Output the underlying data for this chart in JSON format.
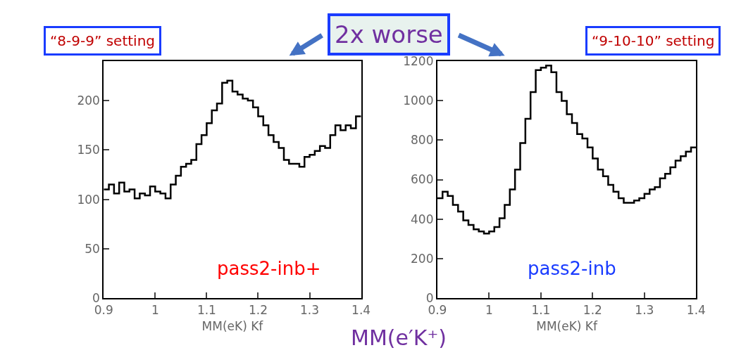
{
  "chart_data": [
    {
      "type": "histogram",
      "xlabel": "MM(eK) Kf",
      "color": "#000000",
      "bins": [
        0.9,
        0.91,
        0.92,
        0.93,
        0.94,
        0.95,
        0.96,
        0.97,
        0.98,
        0.99,
        1.0,
        1.01,
        1.02,
        1.03,
        1.04,
        1.05,
        1.06,
        1.07,
        1.08,
        1.09,
        1.1,
        1.11,
        1.12,
        1.13,
        1.14,
        1.15,
        1.16,
        1.17,
        1.18,
        1.19,
        1.2,
        1.21,
        1.22,
        1.23,
        1.24,
        1.25,
        1.26,
        1.27,
        1.28,
        1.29,
        1.3,
        1.31,
        1.32,
        1.33,
        1.34,
        1.35,
        1.36,
        1.37,
        1.38,
        1.39,
        1.4
      ],
      "values": [
        110,
        115,
        106,
        117,
        108,
        110,
        101,
        106,
        104,
        113,
        108,
        106,
        101,
        115,
        124,
        133,
        136,
        140,
        156,
        165,
        177,
        190,
        197,
        218,
        220,
        209,
        206,
        202,
        200,
        193,
        184,
        175,
        165,
        158,
        152,
        140,
        136,
        136,
        133,
        143,
        145,
        149,
        154,
        152,
        165,
        175,
        170,
        175,
        172,
        184
      ],
      "xlim": [
        0.9,
        1.4
      ],
      "xticks": [
        0.9,
        1,
        1.1,
        1.2,
        1.3,
        1.4
      ],
      "ylim": [
        0,
        240
      ],
      "yticks": [
        0,
        50,
        100,
        150,
        200
      ],
      "annotations": [
        "“8-9-9” setting",
        "pass2-inb+",
        "2x worse",
        "MM(e′K⁺)"
      ]
    },
    {
      "type": "histogram",
      "xlabel": "MM(eK) Kf",
      "color": "#000000",
      "bins": [
        0.9,
        0.91,
        0.92,
        0.93,
        0.94,
        0.95,
        0.96,
        0.97,
        0.98,
        0.99,
        1.0,
        1.01,
        1.02,
        1.03,
        1.04,
        1.05,
        1.06,
        1.07,
        1.08,
        1.09,
        1.1,
        1.11,
        1.12,
        1.13,
        1.14,
        1.15,
        1.16,
        1.17,
        1.18,
        1.19,
        1.2,
        1.21,
        1.22,
        1.23,
        1.24,
        1.25,
        1.26,
        1.27,
        1.28,
        1.29,
        1.3,
        1.31,
        1.32,
        1.33,
        1.34,
        1.35,
        1.36,
        1.37,
        1.38,
        1.39,
        1.4
      ],
      "values": [
        506,
        539,
        517,
        472,
        438,
        394,
        371,
        349,
        338,
        327,
        338,
        360,
        405,
        472,
        550,
        651,
        785,
        908,
        1043,
        1154,
        1166,
        1177,
        1143,
        1043,
        998,
        931,
        886,
        830,
        808,
        763,
        707,
        651,
        617,
        573,
        539,
        506,
        483,
        483,
        494,
        506,
        528,
        550,
        562,
        606,
        629,
        662,
        696,
        718,
        741,
        763
      ],
      "xlim": [
        0.9,
        1.4
      ],
      "xticks": [
        0.9,
        1,
        1.1,
        1.2,
        1.3,
        1.4
      ],
      "ylim": [
        0,
        1200
      ],
      "yticks": [
        0,
        200,
        400,
        600,
        800,
        1000,
        1200
      ],
      "annotations": [
        "“9-10-10” setting",
        "pass2-inb"
      ]
    }
  ]
}
